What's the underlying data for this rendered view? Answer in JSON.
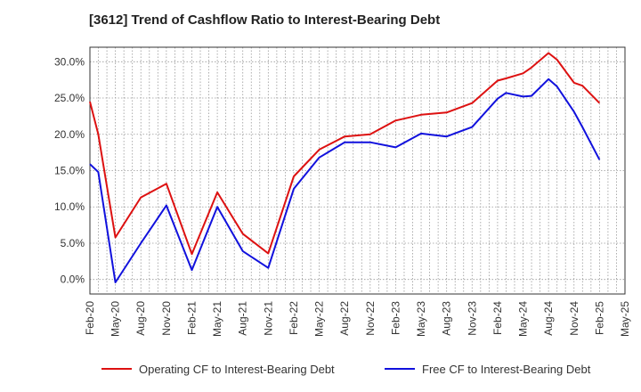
{
  "chart_data": {
    "type": "line",
    "title": "[3612]  Trend of Cashflow Ratio to Interest-Bearing Debt",
    "x": [
      "Feb-20",
      "May-20",
      "Aug-20",
      "Nov-20",
      "Feb-21",
      "May-21",
      "Aug-21",
      "Nov-21",
      "Feb-22",
      "May-22",
      "Aug-22",
      "Nov-22",
      "Feb-23",
      "May-23",
      "Aug-23",
      "Nov-23",
      "Feb-24",
      "May-24",
      "Aug-24",
      "Nov-24",
      "Feb-25",
      "May-25"
    ],
    "ylim": [
      -2,
      32
    ],
    "y_ticks": [
      0,
      5,
      10,
      15,
      20,
      25,
      30
    ],
    "y_tick_labels": [
      "0.0%",
      "5.0%",
      "10.0%",
      "15.0%",
      "20.0%",
      "25.0%",
      "30.0%"
    ],
    "grid": true,
    "legend_position": "bottom",
    "series": [
      {
        "name": "Operating CF to Interest-Bearing Debt",
        "color": "#dd1111",
        "points": [
          [
            0,
            24.5
          ],
          [
            0.33,
            20.0
          ],
          [
            1,
            5.8
          ],
          [
            2,
            11.3
          ],
          [
            3,
            13.2
          ],
          [
            4,
            3.5
          ],
          [
            5,
            12.0
          ],
          [
            6,
            6.3
          ],
          [
            7,
            3.6
          ],
          [
            8,
            14.2
          ],
          [
            9,
            17.9
          ],
          [
            10,
            19.7
          ],
          [
            11,
            20.0
          ],
          [
            12,
            21.9
          ],
          [
            13,
            22.7
          ],
          [
            14,
            23.0
          ],
          [
            15,
            24.3
          ],
          [
            16,
            27.4
          ],
          [
            16.33,
            27.7
          ],
          [
            17,
            28.4
          ],
          [
            17.33,
            29.2
          ],
          [
            18,
            31.2
          ],
          [
            18.33,
            30.3
          ],
          [
            19,
            27.1
          ],
          [
            19.33,
            26.7
          ],
          [
            20,
            24.3
          ]
        ]
      },
      {
        "name": "Free CF to Interest-Bearing Debt",
        "color": "#1111dd",
        "points": [
          [
            0,
            15.9
          ],
          [
            0.33,
            14.8
          ],
          [
            1,
            -0.4
          ],
          [
            2,
            5.0
          ],
          [
            3,
            10.2
          ],
          [
            4,
            1.3
          ],
          [
            5,
            10.0
          ],
          [
            6,
            3.9
          ],
          [
            7,
            1.6
          ],
          [
            8,
            12.5
          ],
          [
            9,
            16.8
          ],
          [
            10,
            18.9
          ],
          [
            11,
            18.9
          ],
          [
            12,
            18.2
          ],
          [
            13,
            20.1
          ],
          [
            14,
            19.7
          ],
          [
            15,
            21.0
          ],
          [
            16,
            24.9
          ],
          [
            16.33,
            25.7
          ],
          [
            17,
            25.2
          ],
          [
            17.33,
            25.3
          ],
          [
            18,
            27.6
          ],
          [
            18.33,
            26.6
          ],
          [
            19,
            23.1
          ],
          [
            19.33,
            21.0
          ],
          [
            20,
            16.5
          ]
        ]
      }
    ]
  }
}
